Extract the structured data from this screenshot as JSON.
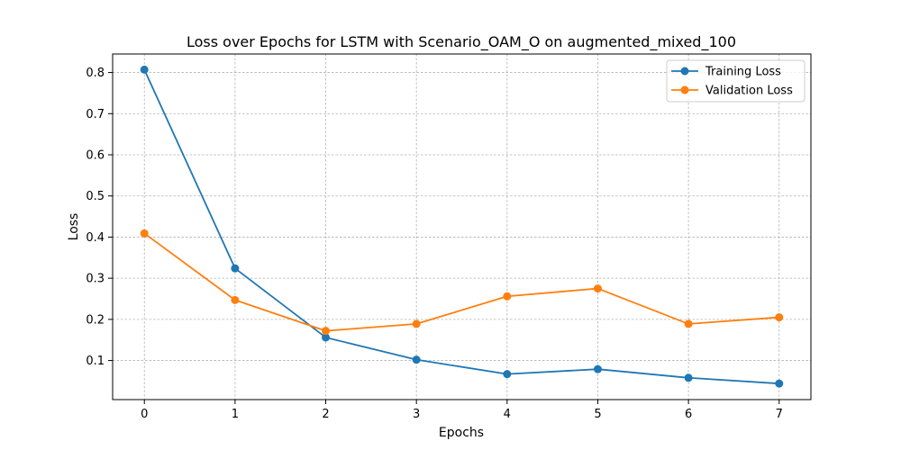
{
  "chart_data": {
    "type": "line",
    "title": "Loss over Epochs for LSTM with Scenario_OAM_O on augmented_mixed_100",
    "xlabel": "Epochs",
    "ylabel": "Loss",
    "x": [
      0,
      1,
      2,
      3,
      4,
      5,
      6,
      7
    ],
    "xlim": [
      -0.35,
      7.35
    ],
    "ylim": [
      0.005,
      0.845
    ],
    "xticks": [
      "0",
      "1",
      "2",
      "3",
      "4",
      "5",
      "6",
      "7"
    ],
    "yticks": [
      "0.1",
      "0.2",
      "0.3",
      "0.4",
      "0.5",
      "0.6",
      "0.7",
      "0.8"
    ],
    "grid": true,
    "legend_position": "top-right",
    "series": [
      {
        "name": "Training Loss",
        "color": "#1f77b4",
        "marker": "circle",
        "values": [
          0.807,
          0.324,
          0.156,
          0.102,
          0.067,
          0.079,
          0.058,
          0.044
        ]
      },
      {
        "name": "Validation Loss",
        "color": "#ff7f0e",
        "marker": "circle",
        "values": [
          0.409,
          0.247,
          0.172,
          0.189,
          0.256,
          0.275,
          0.189,
          0.205
        ]
      }
    ]
  }
}
